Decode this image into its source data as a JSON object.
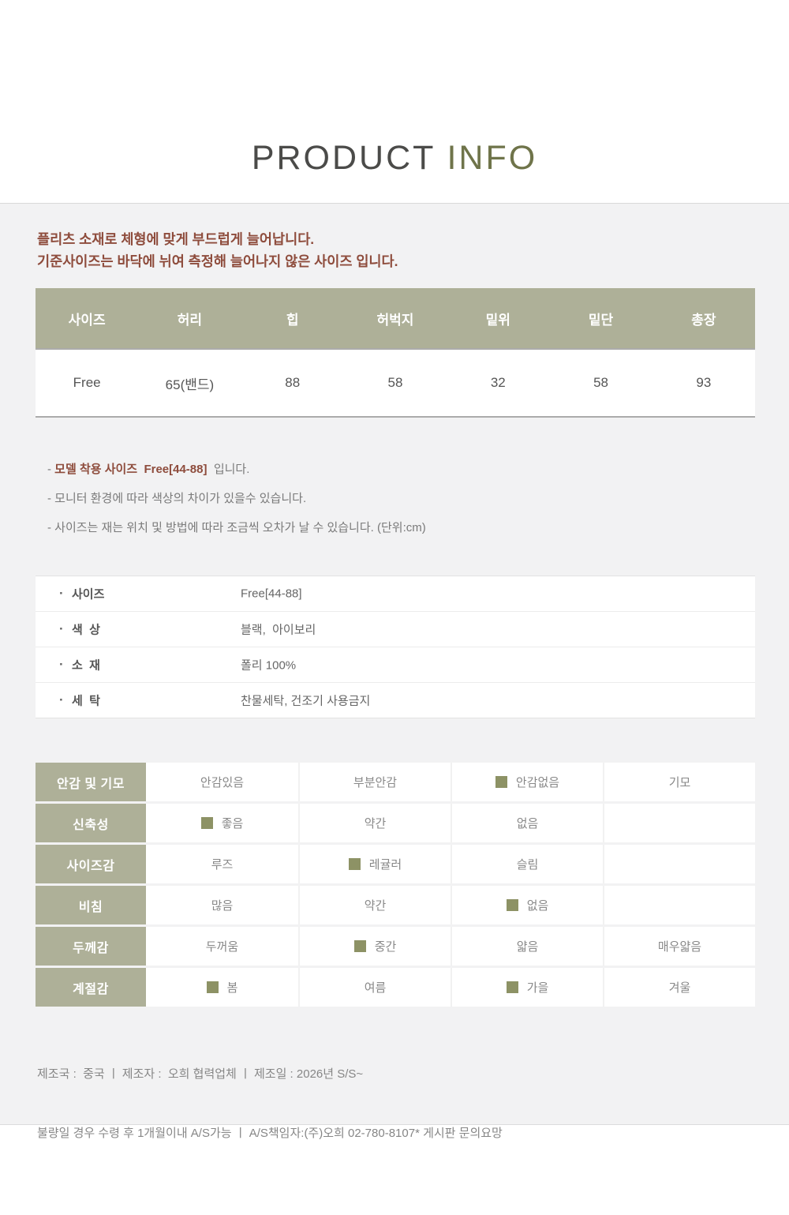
{
  "title": {
    "product": "PRODUCT",
    "info": "INFO"
  },
  "intro": {
    "line1": "플리츠 소재로 체형에 맞게 부드럽게 늘어납니다.",
    "line2": "기준사이즈는 바닥에 뉘여 측정해 늘어나지 않은 사이즈 입니다."
  },
  "size_table": {
    "headers": [
      "사이즈",
      "허리",
      "힙",
      "허벅지",
      "밑위",
      "밑단",
      "총장"
    ],
    "values": [
      "Free",
      "65(밴드)",
      "88",
      "58",
      "32",
      "58",
      "93"
    ]
  },
  "notes": {
    "note1_dash": "- ",
    "note1_bold": "모델 착용 사이즈  Free[44-88]",
    "note1_tail": "  입니다.",
    "note2": "- 모니터 환경에 따라 색상의 차이가 있을수 있습니다.",
    "note3": "- 사이즈는 재는 위치 및 방법에 따라 조금씩 오차가 날 수 있습니다. (단위:cm)"
  },
  "details": {
    "rows": [
      {
        "bullet": "·",
        "label": "사이즈",
        "value": "Free[44-88]"
      },
      {
        "bullet": "·",
        "label": "색  상",
        "value": "블랙,  아이보리"
      },
      {
        "bullet": "·",
        "label": "소  재",
        "value": "폴리 100%"
      },
      {
        "bullet": "·",
        "label": "세  탁",
        "value": "찬물세탁, 건조기 사용금지"
      }
    ]
  },
  "features": {
    "rows": [
      {
        "label": "안감 및 기모",
        "options": [
          {
            "text": "안감있음",
            "marked": false
          },
          {
            "text": "부분안감",
            "marked": false
          },
          {
            "text": "안감없음",
            "marked": true
          },
          {
            "text": "기모",
            "marked": false
          }
        ]
      },
      {
        "label": "신축성",
        "options": [
          {
            "text": "좋음",
            "marked": true
          },
          {
            "text": "약간",
            "marked": false
          },
          {
            "text": "없음",
            "marked": false
          },
          {
            "text": "",
            "marked": false
          }
        ]
      },
      {
        "label": "사이즈감",
        "options": [
          {
            "text": "루즈",
            "marked": false
          },
          {
            "text": "레귤러",
            "marked": true
          },
          {
            "text": "슬림",
            "marked": false
          },
          {
            "text": "",
            "marked": false
          }
        ]
      },
      {
        "label": "비침",
        "options": [
          {
            "text": "많음",
            "marked": false
          },
          {
            "text": "약간",
            "marked": false
          },
          {
            "text": "없음",
            "marked": true
          },
          {
            "text": "",
            "marked": false
          }
        ]
      },
      {
        "label": "두께감",
        "options": [
          {
            "text": "두꺼움",
            "marked": false
          },
          {
            "text": "중간",
            "marked": true
          },
          {
            "text": "얇음",
            "marked": false
          },
          {
            "text": "매우얇음",
            "marked": false
          }
        ]
      },
      {
        "label": "계절감",
        "options": [
          {
            "text": "봄",
            "marked": true
          },
          {
            "text": "여름",
            "marked": false
          },
          {
            "text": "가을",
            "marked": true
          },
          {
            "text": "겨울",
            "marked": false
          }
        ]
      }
    ]
  },
  "footer": {
    "line1": "제조국 :  중국 ㅣ 제조자 :  오희 협력업체 ㅣ 제조일 : 2026년 S/S~",
    "line2": "불량일 경우 수령 후 1개월이내 A/S가능 ㅣ A/S책임자:(주)오희 02-780-8107* 게시판 문의요망"
  },
  "colors": {
    "accent_olive": "#aeb098",
    "marker_olive": "#8d9265",
    "title_olive": "#6f744a",
    "intro_red": "#8e4c3c",
    "panel_bg": "#f2f2f3"
  }
}
